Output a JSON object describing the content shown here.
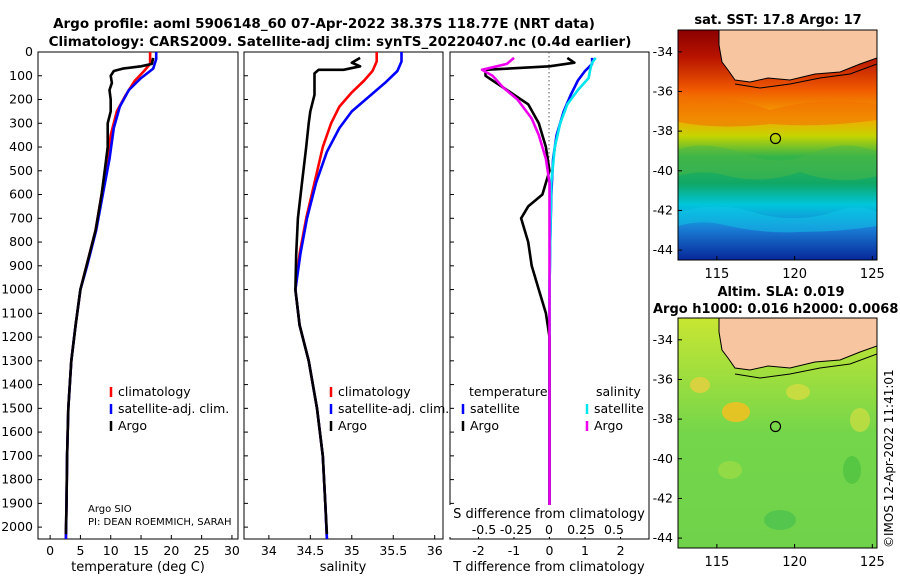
{
  "header": {
    "title_line1": "Argo profile: aoml 5906148_60 07-Apr-2022 38.37S 118.77E (NRT data)",
    "title_line2": "Climatology: CARS2009. Satellite-adj clim: synTS_20220407.nc (0.4d earlier)"
  },
  "credits": {
    "argo_center": "Argo SIO",
    "pi": "PI: DEAN ROEMMICH, SARAH",
    "imos": "©IMOS 12-Apr-2022 11:41:01"
  },
  "colors": {
    "climatology": "#ff0000",
    "satellite": "#0000ff",
    "argo": "#000000",
    "sal_satellite": "#00e5ee",
    "sal_argo": "#ee00ee",
    "land": "#f7c59f"
  },
  "chart_data": [
    {
      "id": "temperature",
      "type": "line",
      "xlabel": "temperature (deg C)",
      "ylabel": "",
      "xlim": [
        -2,
        31
      ],
      "ylim": [
        2050,
        0
      ],
      "xticks": [
        0,
        5,
        10,
        15,
        20,
        25,
        30
      ],
      "yticks": [
        0,
        100,
        200,
        300,
        400,
        500,
        600,
        700,
        800,
        900,
        1000,
        1100,
        1200,
        1300,
        1400,
        1500,
        1600,
        1700,
        1800,
        1900,
        2000
      ],
      "legend": [
        "climatology",
        "satellite-adj. clim.",
        "Argo"
      ],
      "series": [
        {
          "name": "climatology",
          "color": "#ff0000",
          "points": [
            [
              16.5,
              0
            ],
            [
              16.5,
              50
            ],
            [
              15.5,
              80
            ],
            [
              14,
              120
            ],
            [
              12.5,
              180
            ],
            [
              11,
              250
            ],
            [
              10,
              350
            ],
            [
              9.5,
              450
            ],
            [
              8.5,
              600
            ],
            [
              7.5,
              750
            ],
            [
              6,
              900
            ],
            [
              5,
              1000
            ],
            [
              4.2,
              1150
            ],
            [
              3.5,
              1300
            ],
            [
              3,
              1500
            ],
            [
              2.8,
              1700
            ],
            [
              2.7,
              1900
            ],
            [
              2.6,
              2050
            ]
          ]
        },
        {
          "name": "satellite-adj. clim.",
          "color": "#0000ff",
          "points": [
            [
              17.5,
              0
            ],
            [
              17.5,
              30
            ],
            [
              17,
              70
            ],
            [
              15,
              110
            ],
            [
              13,
              160
            ],
            [
              11.5,
              230
            ],
            [
              10.5,
              320
            ],
            [
              9.8,
              450
            ],
            [
              8.7,
              600
            ],
            [
              7.6,
              750
            ],
            [
              6.1,
              900
            ],
            [
              5,
              1000
            ],
            [
              4.2,
              1150
            ],
            [
              3.5,
              1300
            ],
            [
              3,
              1500
            ],
            [
              2.8,
              1700
            ],
            [
              2.7,
              1900
            ],
            [
              2.6,
              2050
            ]
          ]
        },
        {
          "name": "Argo",
          "color": "#000000",
          "points": [
            [
              17,
              25
            ],
            [
              16.8,
              50
            ],
            [
              15,
              60
            ],
            [
              12,
              70
            ],
            [
              10.5,
              80
            ],
            [
              10,
              100
            ],
            [
              10.2,
              130
            ],
            [
              9.8,
              160
            ],
            [
              10,
              200
            ],
            [
              10,
              250
            ],
            [
              9.5,
              300
            ],
            [
              9.5,
              400
            ],
            [
              9,
              500
            ],
            [
              8.5,
              600
            ],
            [
              7.5,
              750
            ],
            [
              6,
              900
            ],
            [
              5,
              1000
            ],
            [
              4.2,
              1150
            ],
            [
              3.5,
              1300
            ],
            [
              3,
              1500
            ],
            [
              2.8,
              1700
            ],
            [
              2.7,
              1900
            ],
            [
              2.6,
              2030
            ]
          ]
        }
      ],
      "annotations": [
        "Argo SIO",
        "PI: DEAN ROEMMICH, SARAH"
      ]
    },
    {
      "id": "salinity",
      "type": "line",
      "xlabel": "salinity",
      "ylabel": "",
      "xlim": [
        33.7,
        36.1
      ],
      "ylim": [
        2050,
        0
      ],
      "xticks": [
        34,
        34.5,
        35,
        35.5,
        36
      ],
      "legend": [
        "climatology",
        "satellite-adj. clim.",
        "Argo"
      ],
      "series": [
        {
          "name": "climatology",
          "color": "#ff0000",
          "points": [
            [
              35.3,
              0
            ],
            [
              35.3,
              40
            ],
            [
              35.25,
              80
            ],
            [
              35.15,
              120
            ],
            [
              35.0,
              170
            ],
            [
              34.85,
              230
            ],
            [
              34.75,
              300
            ],
            [
              34.65,
              400
            ],
            [
              34.55,
              550
            ],
            [
              34.45,
              700
            ],
            [
              34.37,
              850
            ],
            [
              34.32,
              1000
            ],
            [
              34.37,
              1150
            ],
            [
              34.48,
              1300
            ],
            [
              34.58,
              1500
            ],
            [
              34.65,
              1700
            ],
            [
              34.68,
              1900
            ],
            [
              34.7,
              2050
            ]
          ]
        },
        {
          "name": "satellite-adj. clim.",
          "color": "#0000ff",
          "points": [
            [
              35.6,
              0
            ],
            [
              35.6,
              40
            ],
            [
              35.55,
              80
            ],
            [
              35.4,
              130
            ],
            [
              35.2,
              190
            ],
            [
              35.0,
              250
            ],
            [
              34.85,
              320
            ],
            [
              34.7,
              420
            ],
            [
              34.57,
              550
            ],
            [
              34.46,
              700
            ],
            [
              34.38,
              850
            ],
            [
              34.32,
              1000
            ],
            [
              34.37,
              1150
            ],
            [
              34.48,
              1300
            ],
            [
              34.58,
              1500
            ],
            [
              34.65,
              1700
            ],
            [
              34.68,
              1900
            ],
            [
              34.7,
              2050
            ]
          ]
        },
        {
          "name": "Argo",
          "color": "#000000",
          "points": [
            [
              35.1,
              25
            ],
            [
              35.0,
              45
            ],
            [
              35.1,
              60
            ],
            [
              34.9,
              75
            ],
            [
              34.6,
              75
            ],
            [
              34.55,
              90
            ],
            [
              34.55,
              130
            ],
            [
              34.55,
              180
            ],
            [
              34.5,
              250
            ],
            [
              34.48,
              300
            ],
            [
              34.45,
              400
            ],
            [
              34.4,
              550
            ],
            [
              34.35,
              700
            ],
            [
              34.33,
              850
            ],
            [
              34.32,
              1000
            ],
            [
              34.37,
              1150
            ],
            [
              34.48,
              1300
            ],
            [
              34.58,
              1500
            ],
            [
              34.65,
              1700
            ],
            [
              34.68,
              1900
            ],
            [
              34.7,
              2030
            ]
          ]
        }
      ]
    },
    {
      "id": "difference",
      "type": "line",
      "xlabel": "T difference from climatology",
      "top_xlabel": "S difference from climatology",
      "xlim": [
        -2.8,
        2.8
      ],
      "ylim": [
        2050,
        0
      ],
      "xticks": [
        -2,
        -1,
        0,
        1,
        2
      ],
      "top_xticks": [
        "-0.5",
        "-0.25",
        "0",
        "0.25",
        "0.5"
      ],
      "legend_temperature_title": "temperature",
      "legend_salinity_title": "salinity",
      "legend_temperature": [
        "satellite",
        "Argo"
      ],
      "legend_salinity": [
        "satellite",
        "Argo"
      ],
      "series": [
        {
          "name": "T satellite",
          "color": "#0000ff",
          "points": [
            [
              1.2,
              25
            ],
            [
              1.2,
              50
            ],
            [
              1.0,
              80
            ],
            [
              0.8,
              120
            ],
            [
              0.6,
              180
            ],
            [
              0.4,
              250
            ],
            [
              0.2,
              350
            ],
            [
              0.1,
              450
            ],
            [
              0.05,
              600
            ],
            [
              0.02,
              800
            ],
            [
              0,
              1000
            ],
            [
              0,
              1500
            ],
            [
              0,
              2000
            ]
          ]
        },
        {
          "name": "S satellite",
          "color": "#00e5ee",
          "points": [
            [
              1.3,
              25
            ],
            [
              1.2,
              45
            ],
            [
              1.15,
              70
            ],
            [
              1.1,
              110
            ],
            [
              0.8,
              160
            ],
            [
              0.5,
              220
            ],
            [
              0.3,
              300
            ],
            [
              0.15,
              400
            ],
            [
              0.05,
              550
            ],
            [
              0.02,
              800
            ],
            [
              0,
              1000
            ],
            [
              0,
              1500
            ],
            [
              0,
              2030
            ]
          ]
        },
        {
          "name": "T Argo",
          "color": "#000000",
          "points": [
            [
              0.5,
              25
            ],
            [
              0.7,
              45
            ],
            [
              0,
              60
            ],
            [
              -1.8,
              75
            ],
            [
              -1.8,
              100
            ],
            [
              -1.2,
              160
            ],
            [
              -0.6,
              220
            ],
            [
              -0.3,
              300
            ],
            [
              -0.1,
              400
            ],
            [
              0,
              500
            ],
            [
              -0.2,
              600
            ],
            [
              -0.6,
              650
            ],
            [
              -0.8,
              700
            ],
            [
              -0.6,
              800
            ],
            [
              -0.5,
              900
            ],
            [
              -0.3,
              1000
            ],
            [
              -0.1,
              1100
            ],
            [
              0,
              1200
            ],
            [
              0,
              2000
            ]
          ]
        },
        {
          "name": "S Argo",
          "color": "#ee00ee",
          "points": [
            [
              -1.0,
              25
            ],
            [
              -1.2,
              50
            ],
            [
              -1.9,
              75
            ],
            [
              -1.6,
              100
            ],
            [
              -1.3,
              150
            ],
            [
              -0.9,
              200
            ],
            [
              -0.5,
              280
            ],
            [
              -0.3,
              350
            ],
            [
              -0.1,
              450
            ],
            [
              0,
              550
            ],
            [
              0,
              1000
            ],
            [
              0,
              1500
            ],
            [
              0,
              2030
            ]
          ]
        }
      ]
    },
    {
      "id": "sst_map",
      "type": "heatmap",
      "title": "sat. SST: 17.8 Argo: 17",
      "xlim": [
        112.5,
        125.3
      ],
      "ylim": [
        -44.5,
        -32.9
      ],
      "xticks": [
        115,
        120,
        125
      ],
      "yticks": [
        -34,
        -36,
        -38,
        -40,
        -42,
        -44
      ],
      "float_position": [
        118.77,
        -38.37
      ]
    },
    {
      "id": "sla_map",
      "type": "heatmap",
      "title": "Altim. SLA: 0.019",
      "subtitle": "Argo h1000: 0.016 h2000: 0.0068",
      "xlim": [
        112.5,
        125.3
      ],
      "ylim": [
        -44.5,
        -32.9
      ],
      "xticks": [
        115,
        120,
        125
      ],
      "yticks": [
        -34,
        -36,
        -38,
        -40,
        -42,
        -44
      ],
      "float_position": [
        118.77,
        -38.37
      ]
    }
  ]
}
